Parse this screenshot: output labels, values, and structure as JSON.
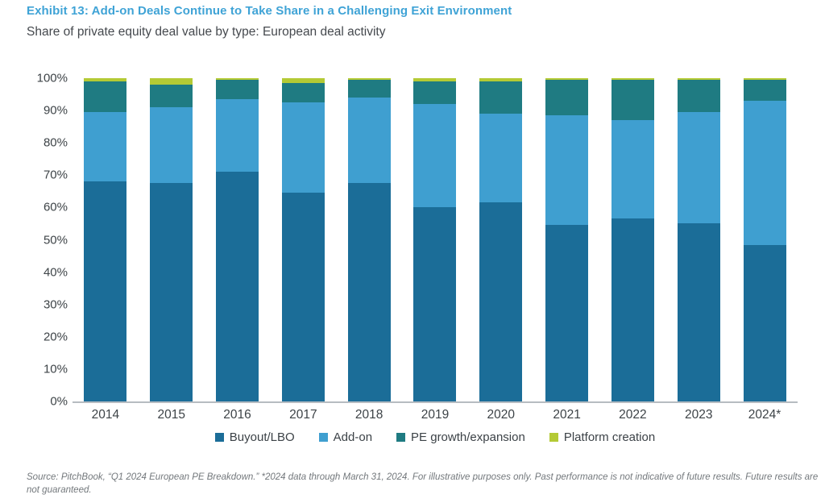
{
  "header": {
    "title": "Exhibit 13: Add-on Deals Continue to Take Share in a Challenging Exit Environment",
    "subtitle": "Share of private equity deal value by type: European deal activity"
  },
  "colors": {
    "title_accent": "#3fa3d6",
    "buyout_lbo": "#1b6d98",
    "add_on": "#3f9fd0",
    "pe_growth_expansion": "#1f7b82",
    "platform_creation": "#b4ca35",
    "axis_line": "#b6bcc1",
    "text": "#3d4347"
  },
  "chart_data": {
    "type": "bar",
    "stacked": true,
    "title": "Share of private equity deal value by type: European deal activity",
    "categories": [
      "2014",
      "2015",
      "2016",
      "2017",
      "2018",
      "2019",
      "2020",
      "2021",
      "2022",
      "2023",
      "2024*"
    ],
    "series": [
      {
        "name": "Buyout/LBO",
        "color": "#1b6d98",
        "values": [
          68,
          67.5,
          71,
          64.5,
          67.5,
          60,
          61.5,
          54.5,
          56.5,
          55,
          48.5
        ]
      },
      {
        "name": "Add-on",
        "color": "#3f9fd0",
        "values": [
          21.5,
          23.5,
          22.5,
          28,
          26.5,
          32,
          27.5,
          34,
          30.5,
          34.5,
          44.5
        ]
      },
      {
        "name": "PE growth/expansion",
        "color": "#1f7b82",
        "values": [
          9.5,
          7,
          6,
          6,
          5.5,
          7,
          10,
          11,
          12.5,
          10,
          6.5
        ]
      },
      {
        "name": "Platform creation",
        "color": "#b4ca35",
        "values": [
          1,
          2,
          0.5,
          1.5,
          0.5,
          1,
          1,
          0.5,
          0.5,
          0.5,
          0.5
        ]
      }
    ],
    "xlabel": "",
    "ylabel": "",
    "ylim": [
      0,
      100
    ],
    "y_ticks": [
      "0%",
      "10%",
      "20%",
      "30%",
      "40%",
      "50%",
      "60%",
      "70%",
      "80%",
      "90%",
      "100%"
    ],
    "grid": false,
    "legend_position": "bottom"
  },
  "footer": {
    "source": "Source: PitchBook, “Q1 2024 European PE Breakdown.” *2024 data through March 31, 2024. For illustrative purposes only. Past performance is not indicative of future results. Future results are not guaranteed."
  }
}
